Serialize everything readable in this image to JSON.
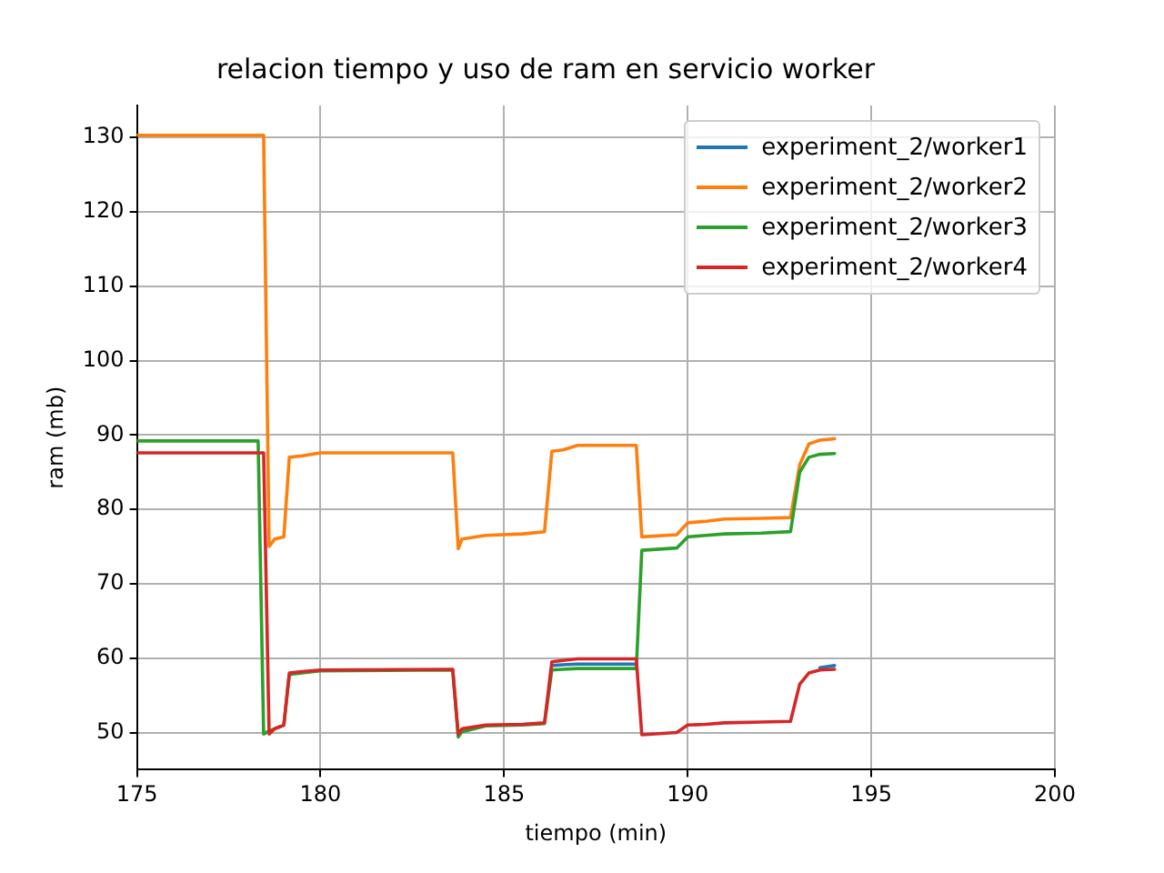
{
  "chart_data": {
    "type": "line",
    "title": "relacion tiempo y uso de ram en servicio worker",
    "xlabel": "tiempo (min)",
    "ylabel": "ram (mb)",
    "x": [
      175,
      178.3,
      178.45,
      178.6,
      178.75,
      178.9,
      179.0,
      179.15,
      179.5,
      180,
      183.6,
      183.75,
      183.85,
      184.5,
      185.5,
      186.1,
      186.3,
      186.6,
      187,
      188.6,
      188.75,
      189.7,
      190.0,
      190.5,
      191,
      192,
      192.8,
      193.05,
      193.3,
      193.6,
      194
    ],
    "series": [
      {
        "name": "experiment_2/worker1",
        "color": "#1f77b4",
        "values": [
          null,
          null,
          null,
          null,
          null,
          null,
          null,
          null,
          null,
          null,
          null,
          null,
          null,
          null,
          null,
          null,
          59.0,
          59.1,
          59.2,
          59.2,
          null,
          null,
          null,
          null,
          null,
          null,
          null,
          null,
          null,
          58.7,
          59.0
        ]
      },
      {
        "name": "experiment_2/worker2",
        "color": "#ff7f0e",
        "values": [
          130.3,
          130.3,
          130.3,
          75,
          76,
          76.2,
          76.3,
          87,
          87.2,
          87.6,
          87.6,
          74.7,
          76,
          76.5,
          76.7,
          77,
          87.8,
          88.0,
          88.6,
          88.6,
          76.3,
          76.6,
          78.2,
          78.4,
          78.7,
          78.8,
          78.9,
          86,
          88.8,
          89.3,
          89.5
        ]
      },
      {
        "name": "experiment_2/worker3",
        "color": "#2ca02c",
        "values": [
          89.2,
          89.2,
          49.8,
          50.2,
          50.5,
          50.8,
          51,
          57.8,
          58.0,
          58.3,
          58.4,
          49.4,
          50.1,
          50.9,
          51.0,
          51.2,
          58.4,
          58.5,
          58.6,
          58.6,
          74.5,
          74.8,
          76.3,
          76.5,
          76.7,
          76.8,
          77.0,
          85,
          87,
          87.4,
          87.5
        ]
      },
      {
        "name": "experiment_2/worker4",
        "color": "#d62728",
        "values": [
          87.6,
          87.6,
          87.6,
          49.8,
          50.5,
          50.8,
          51,
          58,
          58.2,
          58.4,
          58.5,
          49.8,
          50.5,
          51.0,
          51.1,
          51.3,
          59.5,
          59.7,
          59.9,
          59.9,
          49.7,
          50,
          51,
          51.1,
          51.3,
          51.4,
          51.5,
          56.5,
          58,
          58.4,
          58.5
        ]
      }
    ],
    "xlim": [
      175,
      200
    ],
    "xticks": [
      175,
      180,
      185,
      190,
      195,
      200
    ],
    "ylim": [
      45,
      134.3
    ],
    "yticks": [
      50,
      60,
      70,
      80,
      90,
      100,
      110,
      120,
      130
    ],
    "grid": true,
    "legend": "top right",
    "marker": "none",
    "line_style": "solid"
  }
}
